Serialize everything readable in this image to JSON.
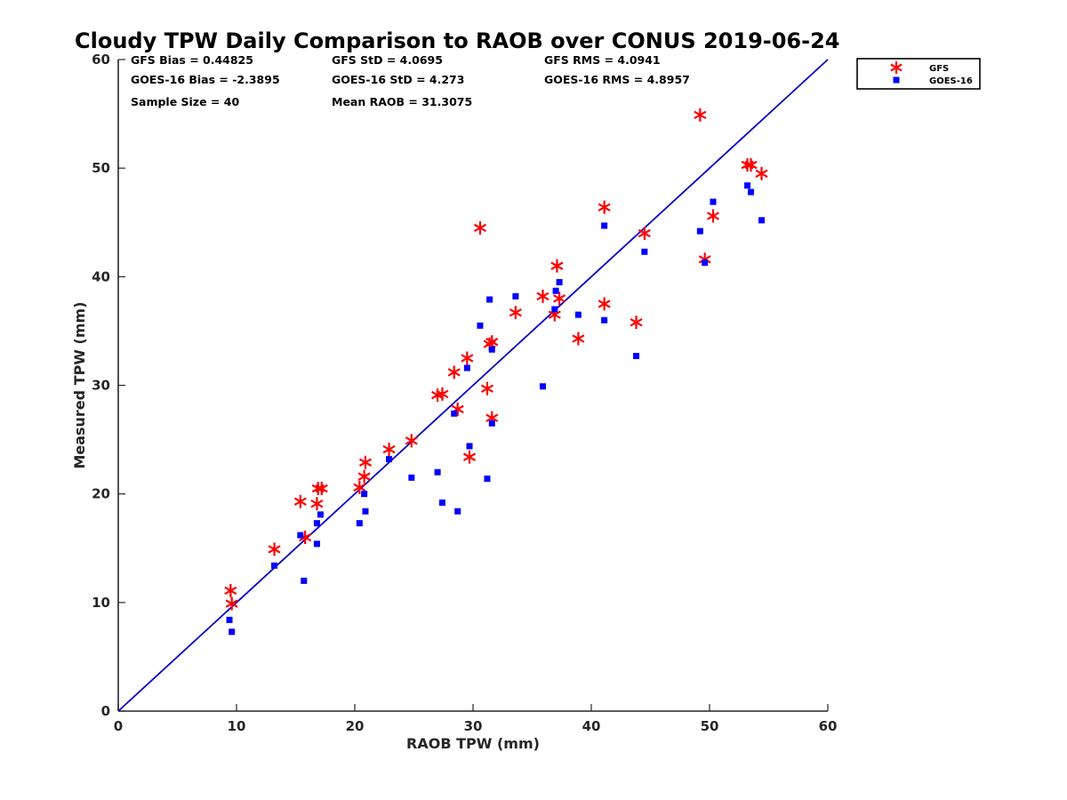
{
  "chart_data": {
    "type": "scatter",
    "title": "Cloudy TPW Daily Comparison to RAOB over CONUS 2019-06-24",
    "xlabel": "RAOB TPW (mm)",
    "ylabel": "Measured TPW (mm)",
    "xlim": [
      0,
      60
    ],
    "ylim": [
      0,
      60
    ],
    "xticks": [
      "0",
      "10",
      "20",
      "30",
      "40",
      "50",
      "60"
    ],
    "yticks": [
      "0",
      "10",
      "20",
      "30",
      "40",
      "50",
      "60"
    ],
    "grid": false,
    "legend_position": "top-right outside",
    "stats": [
      [
        "GFS Bias = 0.44825",
        "GFS StD = 4.0695",
        "GFS RMS = 4.0941"
      ],
      [
        "GOES-16 Bias = -2.3895",
        "GOES-16 StD = 4.273",
        "GOES-16 RMS = 4.8957"
      ],
      [
        "Sample Size = 40",
        "Mean RAOB = 31.3075",
        ""
      ]
    ],
    "reference_line": {
      "x": [
        0,
        60
      ],
      "y": [
        0,
        60
      ],
      "color": "#0000cc"
    },
    "series": [
      {
        "name": "GFS",
        "marker": "asterisk",
        "color": "#ff0000",
        "points": [
          [
            9.5,
            11.1
          ],
          [
            9.6,
            9.9
          ],
          [
            13.2,
            14.9
          ],
          [
            15.4,
            19.3
          ],
          [
            15.8,
            16.0
          ],
          [
            16.8,
            19.1
          ],
          [
            16.9,
            20.5
          ],
          [
            17.2,
            20.5
          ],
          [
            20.4,
            20.6
          ],
          [
            20.8,
            21.6
          ],
          [
            20.9,
            22.9
          ],
          [
            22.9,
            24.1
          ],
          [
            24.8,
            24.9
          ],
          [
            27.0,
            29.1
          ],
          [
            27.4,
            29.2
          ],
          [
            28.4,
            31.2
          ],
          [
            28.7,
            27.8
          ],
          [
            29.5,
            32.5
          ],
          [
            29.7,
            23.4
          ],
          [
            30.6,
            44.5
          ],
          [
            31.2,
            29.7
          ],
          [
            31.4,
            33.8
          ],
          [
            31.6,
            34.0
          ],
          [
            31.6,
            27.0
          ],
          [
            33.6,
            36.7
          ],
          [
            35.9,
            38.2
          ],
          [
            36.9,
            36.5
          ],
          [
            37.1,
            41.0
          ],
          [
            37.3,
            38.0
          ],
          [
            38.9,
            34.3
          ],
          [
            41.1,
            46.4
          ],
          [
            41.1,
            37.5
          ],
          [
            43.8,
            35.8
          ],
          [
            44.5,
            44.0
          ],
          [
            49.2,
            54.9
          ],
          [
            49.6,
            41.6
          ],
          [
            50.3,
            45.6
          ],
          [
            53.2,
            50.3
          ],
          [
            53.5,
            50.3
          ],
          [
            54.4,
            49.5
          ]
        ]
      },
      {
        "name": "GOES-16",
        "marker": "square",
        "color": "#0000ff",
        "points": [
          [
            9.4,
            8.4
          ],
          [
            9.6,
            7.3
          ],
          [
            13.2,
            13.4
          ],
          [
            15.4,
            16.2
          ],
          [
            15.7,
            12.0
          ],
          [
            16.8,
            15.4
          ],
          [
            16.8,
            17.3
          ],
          [
            17.1,
            18.1
          ],
          [
            20.4,
            17.3
          ],
          [
            20.8,
            20.0
          ],
          [
            20.9,
            18.4
          ],
          [
            22.9,
            23.2
          ],
          [
            24.8,
            21.5
          ],
          [
            27.0,
            22.0
          ],
          [
            27.4,
            19.2
          ],
          [
            28.4,
            27.4
          ],
          [
            28.7,
            18.4
          ],
          [
            29.5,
            31.6
          ],
          [
            29.7,
            24.4
          ],
          [
            30.6,
            35.5
          ],
          [
            31.2,
            21.4
          ],
          [
            31.4,
            37.9
          ],
          [
            31.6,
            33.3
          ],
          [
            31.6,
            26.5
          ],
          [
            33.6,
            38.2
          ],
          [
            35.9,
            29.9
          ],
          [
            36.9,
            37.0
          ],
          [
            37.0,
            38.7
          ],
          [
            37.3,
            39.5
          ],
          [
            38.9,
            36.5
          ],
          [
            41.1,
            44.7
          ],
          [
            41.1,
            36.0
          ],
          [
            43.8,
            32.7
          ],
          [
            44.5,
            42.3
          ],
          [
            49.2,
            44.2
          ],
          [
            49.6,
            41.3
          ],
          [
            50.3,
            46.9
          ],
          [
            53.2,
            48.4
          ],
          [
            53.5,
            47.8
          ],
          [
            54.4,
            45.2
          ]
        ]
      }
    ]
  }
}
